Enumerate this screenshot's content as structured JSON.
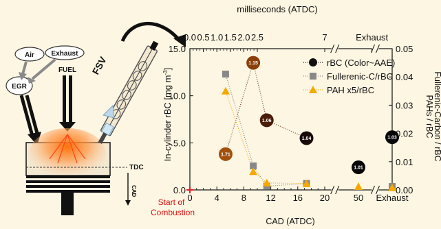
{
  "schematic": {
    "air_label": "Air",
    "exhaust_label": "Exhaust",
    "egr_label": "EGR",
    "fuel_label": "FUEL",
    "fsv_label": "FSV",
    "tdc_label": "TDC",
    "cad_label": "CAD"
  },
  "colors": {
    "background": "#fdf6e3",
    "rbc_marker": "#111111",
    "fullerenic_marker": "#888888",
    "pah_marker": "#f5a800",
    "start_marker": "#e02020"
  },
  "chart_data": {
    "type": "scatter",
    "top_axis_label": "milliseconds (ATDC)",
    "top_ticks": [
      "0.0",
      "0.5",
      "1.0",
      "1.5",
      "2.0",
      "2.5",
      "7",
      "Exhaust"
    ],
    "top_tick_positions": [
      0,
      2,
      4,
      6,
      8,
      10,
      20,
      27
    ],
    "xlabel": "CAD (ATDC)",
    "x_ticks": [
      "0",
      "4",
      "8",
      "12",
      "16",
      "20",
      "50",
      "Exhaust"
    ],
    "x_tick_positions": [
      0,
      4,
      8,
      12,
      16,
      20,
      25,
      30
    ],
    "ylabel_left": "In-cylinder rBC [mg m",
    "ylabel_left_sup": "-3",
    "ylabel_left_end": "]",
    "ylim_left": [
      0,
      15
    ],
    "y_ticks_left": [
      "0.0",
      "5.0",
      "10.0",
      "15.0"
    ],
    "ylabel_right_line1": "Fullerenic-Carbon / rBC",
    "ylabel_right_line2": "PAHs / rBC",
    "ylim_right": [
      0,
      0.05
    ],
    "y_ticks_right": [
      "0.00",
      "0.01",
      "0.02",
      "0.03",
      "0.04",
      "0.05"
    ],
    "start_label_line1": "Start of",
    "start_label_line2": "Combustion",
    "legend_position": "top-right",
    "series": [
      {
        "name": "rBC (Color~AAE)",
        "axis": "left",
        "marker": "circle",
        "points": [
          {
            "x": 5.3,
            "y": 3.8,
            "label": "1.71",
            "color": "#a3500e"
          },
          {
            "x": 9.4,
            "y": 13.5,
            "label": "1.15",
            "color": "#8a3e08"
          },
          {
            "x": 11.4,
            "y": 7.4,
            "label": "1.06",
            "color": "#4b1d08"
          },
          {
            "x": 17.3,
            "y": 5.5,
            "label": "1.04",
            "color": "#1a0a04"
          },
          {
            "x": 50,
            "y": 2.4,
            "label": "1.01",
            "color": "#050505"
          },
          {
            "x": "Exhaust",
            "y": 5.6,
            "label": "1.03",
            "color": "#070707"
          }
        ]
      },
      {
        "name": "Fullerenic-C/rBC",
        "axis": "right",
        "marker": "square",
        "points": [
          {
            "x": 5.3,
            "y": 0.041
          },
          {
            "x": 9.4,
            "y": 0.0085
          },
          {
            "x": 11.4,
            "y": 0.0013
          },
          {
            "x": 17.3,
            "y": 0.0023
          },
          {
            "x": "Exhaust",
            "y": 0.0012
          }
        ]
      },
      {
        "name": "PAH x5/rBC",
        "axis": "right",
        "marker": "triangle",
        "points": [
          {
            "x": 5.3,
            "y": 0.035
          },
          {
            "x": 9.4,
            "y": 0.0065
          },
          {
            "x": 11.4,
            "y": 0.0025
          },
          {
            "x": 17.3,
            "y": 0.0022
          },
          {
            "x": 50,
            "y": 0.0012
          },
          {
            "x": "Exhaust",
            "y": 0.0008
          }
        ]
      }
    ]
  }
}
